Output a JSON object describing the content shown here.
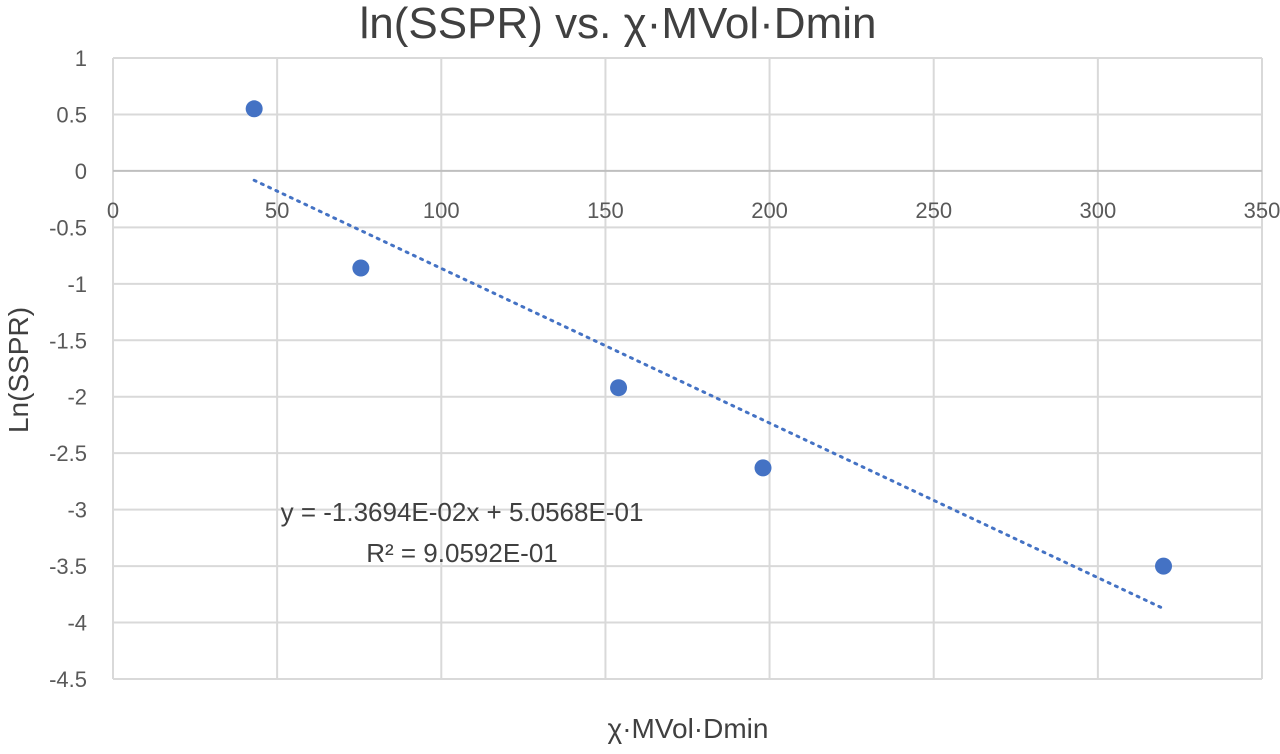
{
  "chart_data": {
    "type": "scatter",
    "title": "ln(SSPR) vs. χ·MVol·Dmin",
    "xlabel": "χ·MVol·Dmin",
    "ylabel": "Ln(SSPR)",
    "xlim": [
      0,
      350
    ],
    "ylim": [
      -4.5,
      1
    ],
    "x_ticks": [
      0,
      50,
      100,
      150,
      200,
      250,
      300,
      350
    ],
    "y_ticks": [
      1,
      0.5,
      0,
      -0.5,
      -1,
      -1.5,
      -2,
      -2.5,
      -3,
      -3.5,
      -4,
      -4.5
    ],
    "x_tick_labels": [
      "0",
      "50",
      "100",
      "150",
      "200",
      "250",
      "300",
      "350"
    ],
    "y_tick_labels": [
      "1",
      "0.5",
      "0",
      "-0.5",
      "-1",
      "-1.5",
      "-2",
      "-2.5",
      "-3",
      "-3.5",
      "-4",
      "-4.5"
    ],
    "grid": true,
    "series": [
      {
        "color": "#4472c4",
        "points": [
          {
            "x": 43,
            "y": 0.55
          },
          {
            "x": 75.5,
            "y": -0.86
          },
          {
            "x": 154,
            "y": -1.92
          },
          {
            "x": 198,
            "y": -2.63
          },
          {
            "x": 320,
            "y": -3.5
          }
        ]
      }
    ],
    "trendline": {
      "type": "linear",
      "slope": -0.013694,
      "intercept": 0.50568,
      "x_range": [
        43,
        320
      ],
      "color": "#4472c4",
      "equation_text": "y = -1.3694E-02x + 5.0568E-01",
      "r2_text": "R² = 9.0592E-01"
    }
  }
}
